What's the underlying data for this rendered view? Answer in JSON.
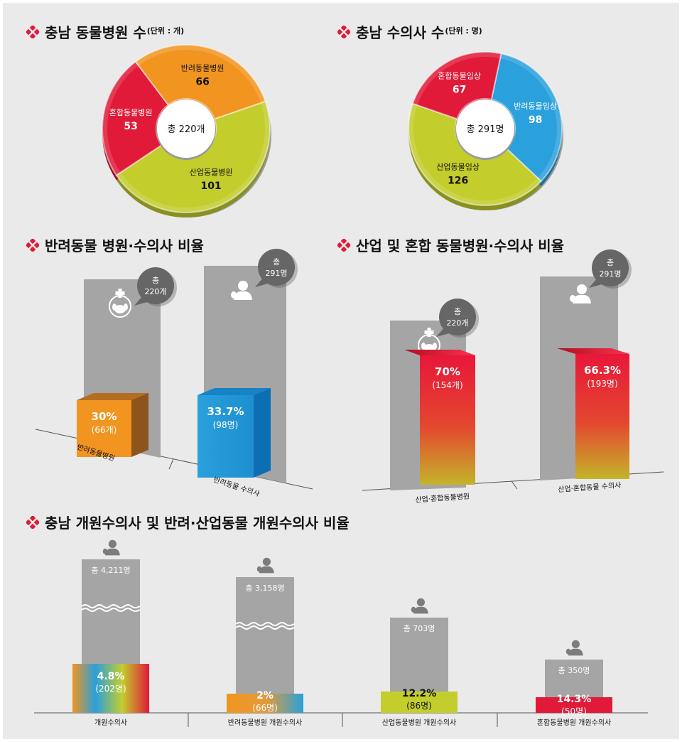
{
  "colors": {
    "red": "#e01a38",
    "orange": "#f19520",
    "yellow_green": "#c3cd2c",
    "blue": "#2aa0dc",
    "gray": "#a5a5a5",
    "dark_gray": "#7c7c7c",
    "background": "#eaeaea"
  },
  "sections": {
    "s1": {
      "title": "충남 동물병원 수",
      "unit": "(단위 : 개)"
    },
    "s2": {
      "title": "충남 수의사 수",
      "unit": "(단위 : 명)"
    },
    "s3": {
      "title": "반려동물 병원·수의사 비율"
    },
    "s4": {
      "title": "산업 및 혼합 동물병원·수의사 비율"
    },
    "s5": {
      "title": "충남 개원수의사 및 반려·산업동물 개원수의사 비율"
    }
  },
  "chart_data": [
    {
      "type": "pie",
      "style": "donut",
      "center_label": "총 220개",
      "slices": [
        {
          "label": "산업동물병원",
          "value": 101,
          "color": "#c3cd2c"
        },
        {
          "label": "혼합동물병원",
          "value": 53,
          "color": "#e01a38"
        },
        {
          "label": "반려동물병원",
          "value": 66,
          "color": "#f19520"
        }
      ]
    },
    {
      "type": "pie",
      "style": "donut",
      "center_label": "총 291명",
      "slices": [
        {
          "label": "반려동물임상",
          "value": 98,
          "color": "#2aa0dc"
        },
        {
          "label": "산업동물임상",
          "value": 126,
          "color": "#c3cd2c"
        },
        {
          "label": "혼합동물임상",
          "value": 67,
          "color": "#e01a38"
        }
      ]
    },
    {
      "type": "bar",
      "style": "3d-share",
      "categories": [
        "반려동물병원",
        "반려동물 수의사"
      ],
      "totals": [
        "총\n220개",
        "총\n291명"
      ],
      "percent": [
        30,
        33.7
      ],
      "pct_labels": [
        "30%",
        "33.7%"
      ],
      "count_labels": [
        "(66개)",
        "(98명)"
      ],
      "colors": [
        "#f19520",
        "#2aa0dc"
      ],
      "icons": [
        "hospital-dog-icon",
        "vet-doctor-icon"
      ]
    },
    {
      "type": "bar",
      "style": "3d-share",
      "categories": [
        "산업·혼합동물병원",
        "산업·혼합동물 수의사"
      ],
      "totals": [
        "총\n220개",
        "총\n291명"
      ],
      "percent": [
        70,
        66.3
      ],
      "pct_labels": [
        "70%",
        "66.3%"
      ],
      "count_labels": [
        "(154개)",
        "(193명)"
      ],
      "colors": [
        "#e01a38",
        "#e01a38"
      ],
      "icons": [
        "hospital-dog-icon",
        "vet-doctor-icon"
      ]
    },
    {
      "type": "bar",
      "style": "share",
      "categories": [
        "개원수의사",
        "반려동물병원 개원수의사",
        "산업동물병원 개원수의사",
        "혼합동물병원 개원수의사"
      ],
      "totals": [
        "총 4,211명",
        "총 3,158명",
        "총 703명",
        "총 350명"
      ],
      "total_values": [
        4211,
        3158,
        703,
        350
      ],
      "pct_labels": [
        "4.8%",
        "2%",
        "12.2%",
        "14.3%"
      ],
      "count_labels": [
        "(202명)",
        "(66명)",
        "(86명)",
        "(50명)"
      ],
      "percent": [
        4.8,
        2,
        12.2,
        14.3
      ],
      "axis_break": [
        true,
        true,
        false,
        false
      ],
      "colors": [
        "rainbow",
        "orange-blue",
        "#c3cd2c",
        "#e01a38"
      ]
    }
  ]
}
